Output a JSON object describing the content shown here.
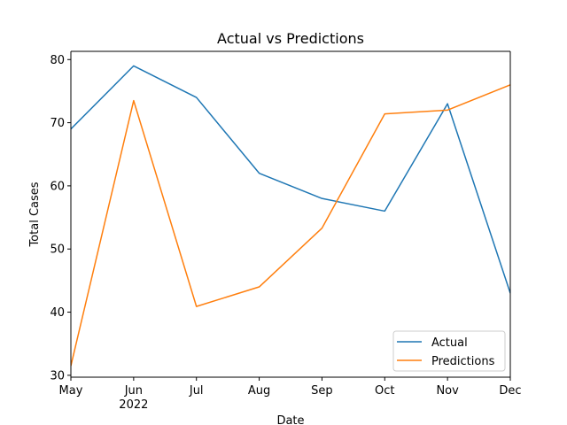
{
  "chart_data": {
    "type": "line",
    "title": "Actual vs Predictions",
    "xlabel": "Date",
    "ylabel": "Total Cases",
    "x": [
      "May",
      "Jun",
      "Jul",
      "Aug",
      "Sep",
      "Oct",
      "Nov",
      "Dec"
    ],
    "x_secondary_label": "2022",
    "ylim": [
      29.7,
      81.3
    ],
    "yticks": [
      30,
      40,
      50,
      60,
      70,
      80
    ],
    "grid": false,
    "legend_position": "lower-right",
    "series": [
      {
        "name": "Actual",
        "color": "#1f77b4",
        "values": [
          69,
          79,
          74,
          62,
          58,
          56,
          73,
          43
        ]
      },
      {
        "name": "Predictions",
        "color": "#ff7f0e",
        "values": [
          31.5,
          73.5,
          40.9,
          44,
          53.3,
          71.4,
          72,
          76
        ]
      }
    ]
  }
}
